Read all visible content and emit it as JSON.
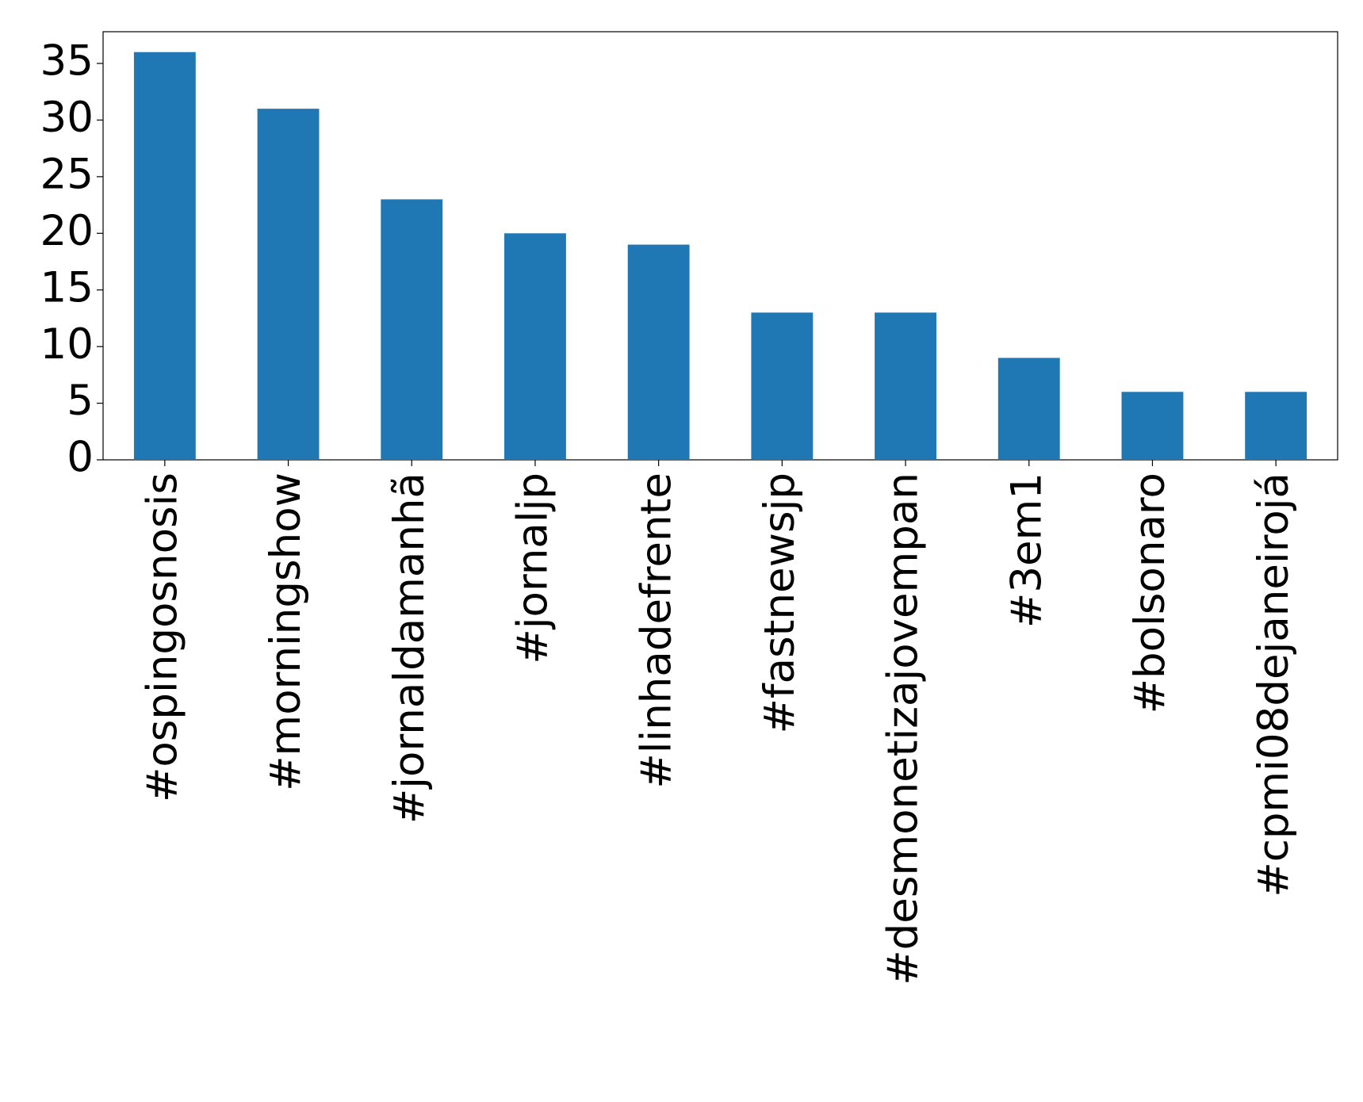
{
  "chart_data": {
    "type": "bar",
    "categories": [
      "#ospingosnosis",
      "#morningshow",
      "#jornaldamanhã",
      "#jornaljp",
      "#linhadefrente",
      "#fastnewsjp",
      "#desmonetizajovempan",
      "#3em1",
      "#bolsonaro",
      "#cpmi08dejaneirojá"
    ],
    "values": [
      36,
      31,
      23,
      20,
      19,
      13,
      13,
      9,
      6,
      6
    ],
    "color": "#1f77b4",
    "ylim": [
      0,
      37.8
    ],
    "yticks": [
      0,
      5,
      10,
      15,
      20,
      25,
      30,
      35
    ],
    "grid": false
  }
}
